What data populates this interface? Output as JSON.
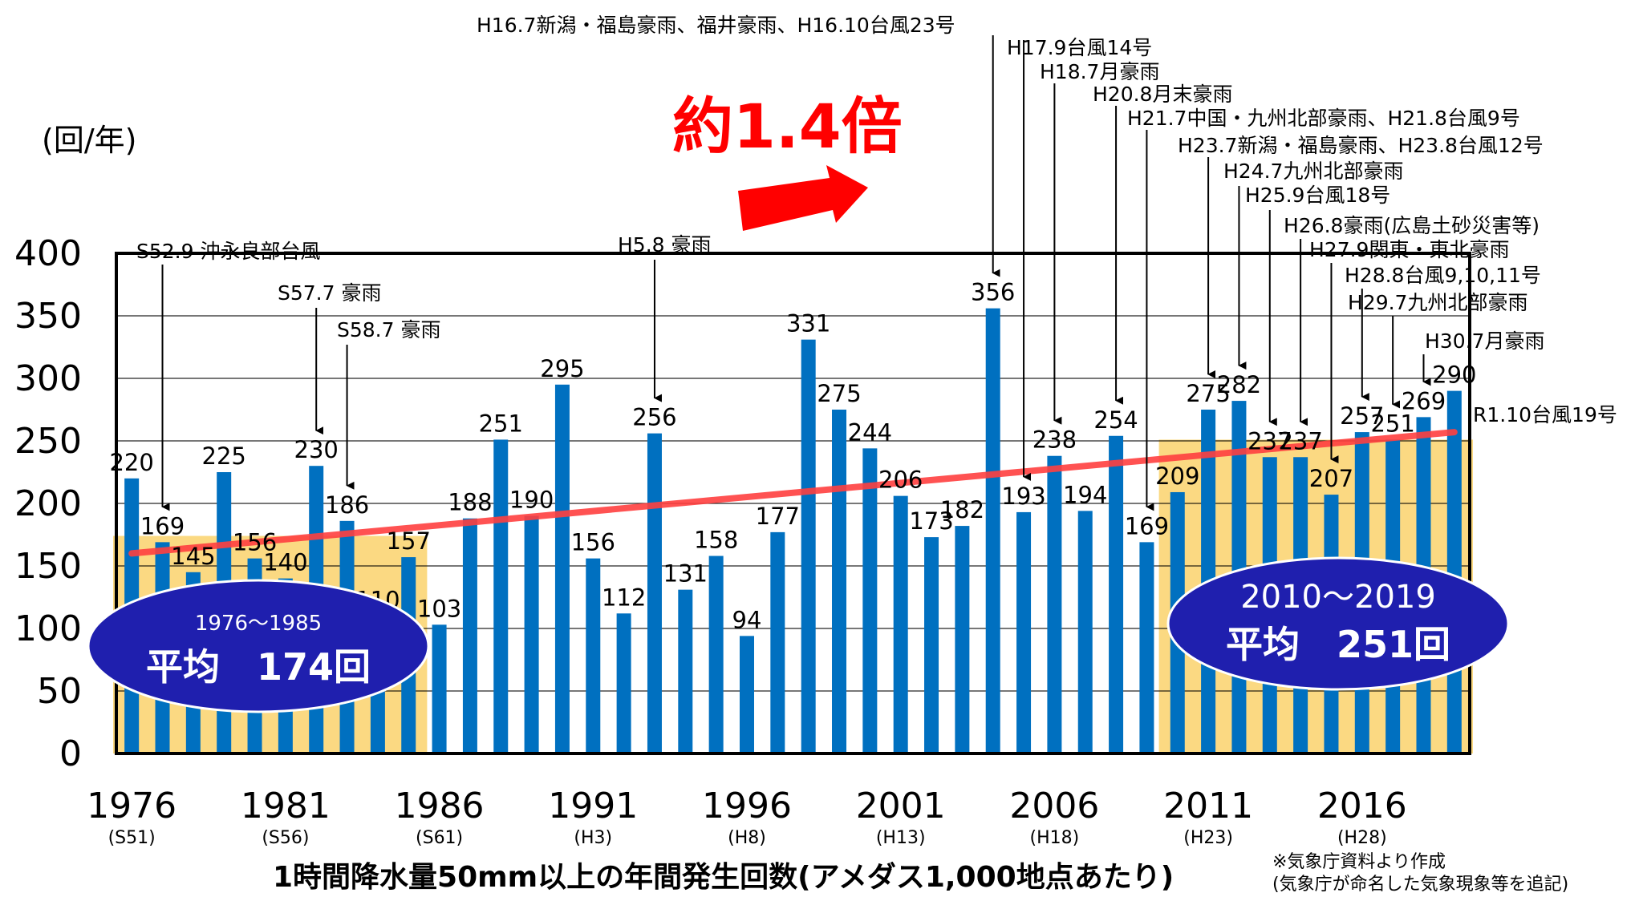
{
  "chart_data": {
    "type": "bar",
    "title": "約1.4倍",
    "xlabel": "1時間降水量50mm以上の年間発生回数(アメダス1,000地点あたり)",
    "ylabel": "(回/年)",
    "ylim": [
      0,
      400
    ],
    "yticks": [
      "0",
      "50",
      "100",
      "150",
      "200",
      "250",
      "300",
      "350",
      "400"
    ],
    "grid": true,
    "years": [
      1976,
      1977,
      1978,
      1979,
      1980,
      1981,
      1982,
      1983,
      1984,
      1985,
      1986,
      1987,
      1988,
      1989,
      1990,
      1991,
      1992,
      1993,
      1994,
      1995,
      1996,
      1997,
      1998,
      1999,
      2000,
      2001,
      2002,
      2003,
      2004,
      2005,
      2006,
      2007,
      2008,
      2009,
      2010,
      2011,
      2012,
      2013,
      2014,
      2015,
      2016,
      2017,
      2018,
      2019
    ],
    "values": [
      220,
      169,
      145,
      225,
      156,
      140,
      230,
      186,
      110,
      157,
      103,
      188,
      251,
      190,
      295,
      156,
      112,
      256,
      131,
      158,
      94,
      177,
      331,
      275,
      244,
      206,
      173,
      182,
      356,
      193,
      238,
      194,
      254,
      169,
      209,
      275,
      282,
      237,
      237,
      207,
      257,
      251,
      269,
      290
    ],
    "value_labels": [
      "220",
      "169",
      "145",
      "225",
      "156",
      "140",
      "230",
      "186",
      "110",
      "157",
      "103",
      "188",
      "251",
      "190",
      "295",
      "156",
      "112",
      "256",
      "131",
      "158",
      "94",
      "177",
      "331",
      "275",
      "244",
      "206",
      "173",
      "182",
      "356",
      "193",
      "238",
      "194",
      "254",
      "169",
      "209",
      "275",
      "282",
      "237",
      "237",
      "207",
      "257",
      "251",
      "269",
      "290"
    ],
    "x_ticks": [
      {
        "year": 1976,
        "label": "1976",
        "era": "(S51)"
      },
      {
        "year": 1981,
        "label": "1981",
        "era": "(S56)"
      },
      {
        "year": 1986,
        "label": "1986",
        "era": "(S61)"
      },
      {
        "year": 1991,
        "label": "1991",
        "era": "(H3)"
      },
      {
        "year": 1996,
        "label": "1996",
        "era": "(H8)"
      },
      {
        "year": 2001,
        "label": "2001",
        "era": "(H13)"
      },
      {
        "year": 2006,
        "label": "2006",
        "era": "(H18)"
      },
      {
        "year": 2011,
        "label": "2011",
        "era": "(H23)"
      },
      {
        "year": 2016,
        "label": "2016",
        "era": "(H28)"
      }
    ],
    "averages": [
      {
        "from": 1976,
        "to": 1985,
        "value": 174,
        "range_label": "1976〜1985",
        "value_label": "平均　174回"
      },
      {
        "from": 2010,
        "to": 2019,
        "value": 251,
        "range_label": "2010〜2019",
        "value_label": "平均　251回"
      }
    ],
    "trend": {
      "start_year": 1976,
      "start_value": 160,
      "end_year": 2019,
      "end_value": 257
    },
    "annotations": [
      {
        "text": "S52.9 沖永良部台風",
        "year": 1977
      },
      {
        "text": "S57.7 豪雨",
        "year": 1982
      },
      {
        "text": "S58.7 豪雨",
        "year": 1983
      },
      {
        "text": "H5.8 豪雨",
        "year": 1993
      },
      {
        "text": "H16.7新潟・福島豪雨、福井豪雨、H16.10台風23号",
        "year": 2004
      },
      {
        "text": "H17.9台風14号",
        "year": 2005
      },
      {
        "text": "H18.7月豪雨",
        "year": 2006
      },
      {
        "text": "H20.8月末豪雨",
        "year": 2008
      },
      {
        "text": "H21.7中国・九州北部豪雨、H21.8台風9号",
        "year": 2009
      },
      {
        "text": "H23.7新潟・福島豪雨、H23.8台風12号",
        "year": 2011
      },
      {
        "text": "H24.7九州北部豪雨",
        "year": 2012
      },
      {
        "text": "H25.9台風18号",
        "year": 2013
      },
      {
        "text": "H26.8豪雨(広島土砂災害等)",
        "year": 2014
      },
      {
        "text": "H27.9関東・東北豪雨",
        "year": 2015
      },
      {
        "text": "H28.8台風9,10,11号",
        "year": 2016
      },
      {
        "text": "H29.7九州北部豪雨",
        "year": 2017
      },
      {
        "text": "H30.7月豪雨",
        "year": 2018
      },
      {
        "text": "R1.10台風19号",
        "year": 2019
      }
    ],
    "source_note": "※気象庁資料より作成",
    "source_note2": "(気象庁が命名した気象現象等を追記)",
    "colors": {
      "bar": "#0070c0",
      "avg_fill": "#fbd982",
      "trend": "#ff4040",
      "arrow": "#ff0000",
      "ellipse": "#1f1fae"
    }
  }
}
